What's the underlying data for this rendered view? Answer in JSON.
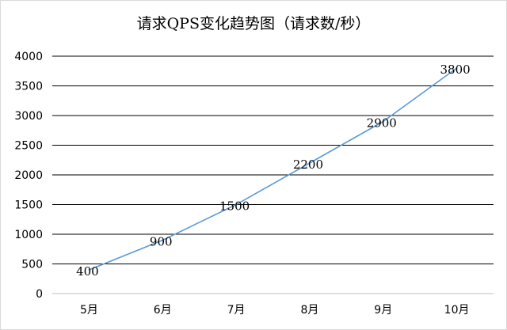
{
  "chart_data": {
    "type": "line",
    "title": "请求QPS变化趋势图（请求数/秒）",
    "categories": [
      "5月",
      "6月",
      "7月",
      "8月",
      "9月",
      "10月"
    ],
    "series": [
      {
        "values": [
          400,
          900,
          1500,
          2200,
          2900,
          3800
        ],
        "color": "#5b9bd5"
      }
    ],
    "ylim": [
      0,
      4000
    ],
    "yticks": [
      0,
      500,
      1000,
      1500,
      2000,
      2500,
      3000,
      3500,
      4000
    ],
    "grid": true,
    "legend": "none",
    "data_labels": [
      "400",
      "900",
      "1500",
      "2200",
      "2900",
      "3800"
    ],
    "xlabel": "",
    "ylabel": ""
  }
}
